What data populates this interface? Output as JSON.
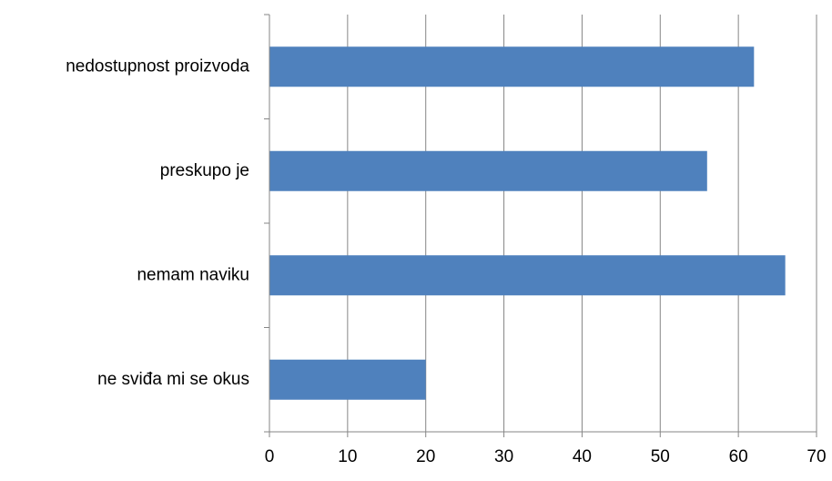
{
  "chart_data": {
    "type": "barh",
    "categories": [
      "nedostupnost proizvoda",
      "preskupo je",
      "nemam naviku",
      "ne sviđa mi se okus"
    ],
    "values": [
      62,
      56,
      66,
      20
    ],
    "color": "#4f81bd",
    "xlim": [
      0,
      70
    ],
    "xticks": [
      0,
      10,
      20,
      30,
      40,
      50,
      60,
      70
    ],
    "grid": true
  }
}
